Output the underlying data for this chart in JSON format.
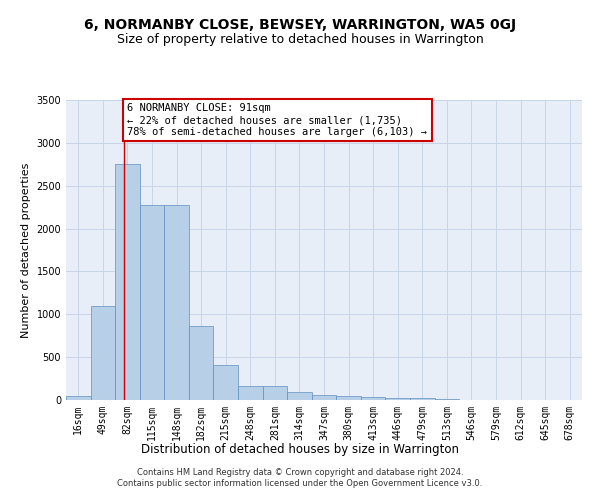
{
  "title": "6, NORMANBY CLOSE, BEWSEY, WARRINGTON, WA5 0GJ",
  "subtitle": "Size of property relative to detached houses in Warrington",
  "xlabel": "Distribution of detached houses by size in Warrington",
  "ylabel": "Number of detached properties",
  "bar_labels": [
    "16sqm",
    "49sqm",
    "82sqm",
    "115sqm",
    "148sqm",
    "182sqm",
    "215sqm",
    "248sqm",
    "281sqm",
    "314sqm",
    "347sqm",
    "380sqm",
    "413sqm",
    "446sqm",
    "479sqm",
    "513sqm",
    "546sqm",
    "579sqm",
    "612sqm",
    "645sqm",
    "678sqm"
  ],
  "bar_values": [
    50,
    1100,
    2750,
    2270,
    2280,
    860,
    410,
    165,
    165,
    90,
    55,
    45,
    35,
    25,
    25,
    10,
    5,
    5,
    0,
    0,
    0
  ],
  "bar_color": "#b8cfe8",
  "bar_edge_color": "#6090c0",
  "grid_color": "#c8d4e8",
  "background_color": "#e8eef8",
  "annotation_text": "6 NORMANBY CLOSE: 91sqm\n← 22% of detached houses are smaller (1,735)\n78% of semi-detached houses are larger (6,103) →",
  "vline_x": 1.85,
  "annotation_box_color": "#ffffff",
  "annotation_box_edge_color": "#cc0000",
  "ylim": [
    0,
    3500
  ],
  "yticks": [
    0,
    500,
    1000,
    1500,
    2000,
    2500,
    3000,
    3500
  ],
  "footnote": "Contains HM Land Registry data © Crown copyright and database right 2024.\nContains public sector information licensed under the Open Government Licence v3.0.",
  "title_fontsize": 10,
  "subtitle_fontsize": 9,
  "xlabel_fontsize": 8.5,
  "ylabel_fontsize": 8,
  "tick_fontsize": 7,
  "annotation_fontsize": 7.5,
  "footnote_fontsize": 6
}
